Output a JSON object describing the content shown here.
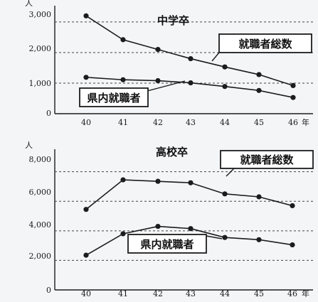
{
  "colors": {
    "line": "#1c1c1c",
    "background": "#f4f5f7",
    "grid": "#444444"
  },
  "chart_data": [
    {
      "type": "line",
      "title": "中学卒",
      "unit": "人",
      "x_unit": "年",
      "categories": [
        "40",
        "41",
        "42",
        "43",
        "44",
        "45",
        "46"
      ],
      "yticks": [
        "0",
        "1,000",
        "2,000",
        "3,000"
      ],
      "ylim": [
        0,
        3300
      ],
      "grid": "dashed horizontal",
      "series": [
        {
          "name": "就職者総数",
          "values": [
            3200,
            2420,
            2100,
            1800,
            1530,
            1280,
            920
          ]
        },
        {
          "name": "県内就職者",
          "values": [
            1190,
            1110,
            1080,
            1010,
            890,
            760,
            530
          ]
        }
      ]
    },
    {
      "type": "line",
      "title": "高校卒",
      "unit": "人",
      "x_unit": "年",
      "categories": [
        "40",
        "41",
        "42",
        "43",
        "44",
        "45",
        "46"
      ],
      "yticks": [
        "0",
        "2,000",
        "4,000",
        "6,000",
        "8,000"
      ],
      "ylim": [
        0,
        8800
      ],
      "grid": "dashed horizontal",
      "series": [
        {
          "name": "就職者総数",
          "values": [
            5450,
            7450,
            7350,
            7250,
            6500,
            6300,
            5700
          ]
        },
        {
          "name": "県内就職者",
          "values": [
            2350,
            3800,
            4300,
            4150,
            3550,
            3400,
            3050
          ]
        }
      ]
    }
  ]
}
